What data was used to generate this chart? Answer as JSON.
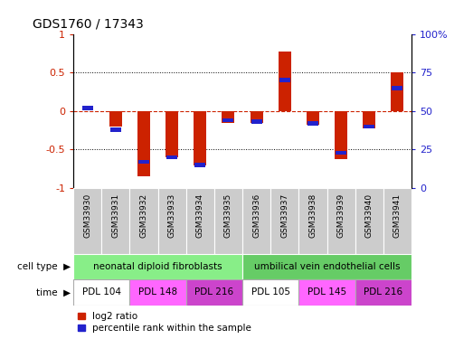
{
  "title": "GDS1760 / 17343",
  "samples": [
    "GSM33930",
    "GSM33931",
    "GSM33932",
    "GSM33933",
    "GSM33934",
    "GSM33935",
    "GSM33936",
    "GSM33937",
    "GSM33938",
    "GSM33939",
    "GSM33940",
    "GSM33941"
  ],
  "log2_ratio": [
    0.0,
    -0.2,
    -0.85,
    -0.6,
    -0.7,
    -0.15,
    -0.15,
    0.77,
    -0.18,
    -0.62,
    -0.22,
    0.5
  ],
  "percentile_rank": [
    52,
    38,
    17,
    20,
    15,
    44,
    43,
    70,
    42,
    23,
    40,
    65
  ],
  "bar_color_red": "#cc2200",
  "bar_color_blue": "#2222cc",
  "ylim_left": [
    -1,
    1
  ],
  "ylim_right": [
    0,
    100
  ],
  "yticks_left": [
    -1,
    -0.5,
    0,
    0.5,
    1
  ],
  "yticks_right": [
    0,
    25,
    50,
    75,
    100
  ],
  "ytick_labels_left": [
    "-1",
    "-0.5",
    "0",
    "0.5",
    "1"
  ],
  "ytick_labels_right": [
    "0",
    "25",
    "50",
    "75",
    "100%"
  ],
  "dotted_lines": [
    -0.5,
    0.5
  ],
  "legend_items": [
    {
      "label": "log2 ratio",
      "color": "#cc2200"
    },
    {
      "label": "percentile rank within the sample",
      "color": "#2222cc"
    }
  ],
  "cell_groups": [
    {
      "label": "neonatal diploid fibroblasts",
      "xstart": -0.5,
      "xend": 5.5,
      "color": "#88ee88"
    },
    {
      "label": "umbilical vein endothelial cells",
      "xstart": 5.5,
      "xend": 11.5,
      "color": "#66cc66"
    }
  ],
  "time_groups": [
    {
      "label": "PDL 104",
      "xstart": -0.5,
      "xend": 1.5,
      "color": "#ffffff"
    },
    {
      "label": "PDL 148",
      "xstart": 1.5,
      "xend": 3.5,
      "color": "#ff66ff"
    },
    {
      "label": "PDL 216",
      "xstart": 3.5,
      "xend": 5.5,
      "color": "#cc44cc"
    },
    {
      "label": "PDL 105",
      "xstart": 5.5,
      "xend": 7.5,
      "color": "#ffffff"
    },
    {
      "label": "PDL 145",
      "xstart": 7.5,
      "xend": 9.5,
      "color": "#ff66ff"
    },
    {
      "label": "PDL 216",
      "xstart": 9.5,
      "xend": 11.5,
      "color": "#cc44cc"
    }
  ],
  "sample_col_color": "#cccccc",
  "bar_width": 0.45,
  "pct_bar_height": 0.055
}
